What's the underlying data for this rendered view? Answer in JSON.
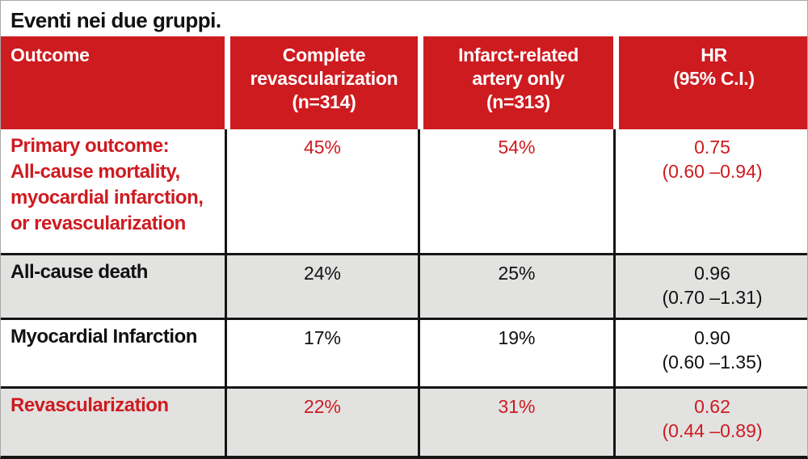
{
  "title": "Eventi nei due gruppi.",
  "colors": {
    "accent_red": "#ce1b20",
    "row_gray": "#e2e2e1",
    "row_white": "#ffffff",
    "grid_black": "#151515",
    "header_text": "#ffffff"
  },
  "table": {
    "headers": [
      "Outcome",
      "Complete\nrevascularization\n(n=314)",
      "Infarct-related\nartery only\n(n=313)",
      "HR\n(95% C.I.)"
    ],
    "rows": [
      {
        "outcome": "Primary outcome:\nAll-cause mortality,\nmyocardial infarction,\nor revascularization",
        "complete": "45%",
        "ira_only": "54%",
        "hr": "0.75\n(0.60 –0.94)",
        "text_color": "red",
        "background": "white"
      },
      {
        "outcome": "All-cause death",
        "complete": "24%",
        "ira_only": "25%",
        "hr": "0.96\n(0.70 –1.31)",
        "text_color": "black",
        "background": "gray"
      },
      {
        "outcome": "Myocardial Infarction",
        "complete": "17%",
        "ira_only": "19%",
        "hr": "0.90\n(0.60 –1.35)",
        "text_color": "black",
        "background": "white"
      },
      {
        "outcome": "Revascularization",
        "complete": "22%",
        "ira_only": "31%",
        "hr": "0.62\n(0.44 –0.89)",
        "text_color": "red",
        "background": "gray"
      }
    ]
  },
  "chart_data": {
    "type": "table",
    "title": "Eventi nei due gruppi.",
    "columns": [
      "Outcome",
      "Complete revascularization (n=314)",
      "Infarct-related artery only (n=313)",
      "HR (95% C.I.)"
    ],
    "rows": [
      [
        "Primary outcome: All-cause mortality, myocardial infarction, or revascularization",
        "45%",
        "54%",
        "0.75 (0.60 –0.94)"
      ],
      [
        "All-cause death",
        "24%",
        "25%",
        "0.96 (0.70 –1.31)"
      ],
      [
        "Myocardial Infarction",
        "17%",
        "19%",
        "0.90 (0.60 –1.35)"
      ],
      [
        "Revascularization",
        "22%",
        "31%",
        "0.62 (0.44 –0.89)"
      ]
    ]
  }
}
